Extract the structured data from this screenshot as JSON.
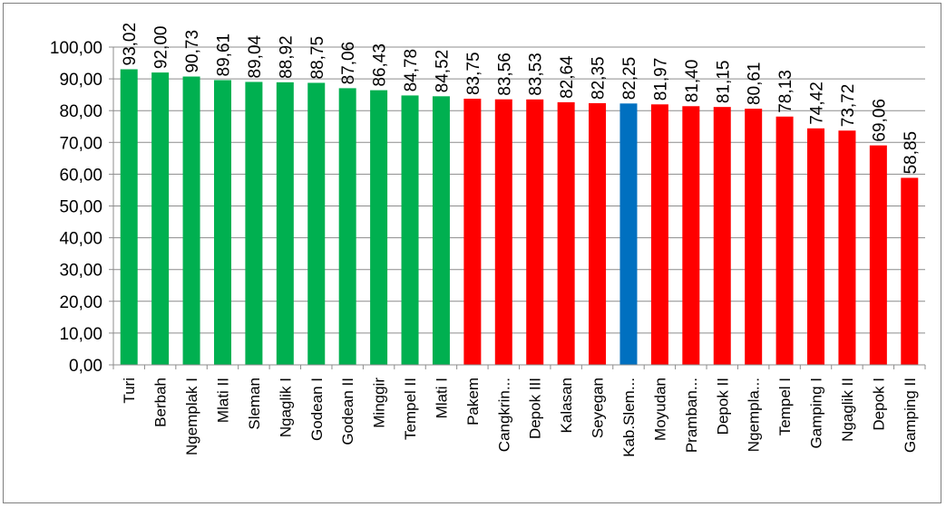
{
  "chart_data": {
    "type": "bar",
    "categories": [
      "Turi",
      "Berbah",
      "Ngemplak I",
      "Mlati II",
      "Sleman",
      "Ngaglik I",
      "Godean I",
      "Godean II",
      "Minggir",
      "Tempel II",
      "Mlati I",
      "Pakem",
      "Cangkrin...",
      "Depok III",
      "Kalasan",
      "Seyegan",
      "Kab.Slem...",
      "Moyudan",
      "Pramban...",
      "Depok II",
      "Ngempla...",
      "Tempel I",
      "Gamping I",
      "Ngaglik II",
      "Depok I",
      "Gamping II"
    ],
    "values": [
      93.02,
      92.0,
      90.73,
      89.61,
      89.04,
      88.92,
      88.75,
      87.06,
      86.43,
      84.78,
      84.52,
      83.75,
      83.56,
      83.53,
      82.64,
      82.35,
      82.25,
      81.97,
      81.4,
      81.15,
      80.61,
      78.13,
      74.42,
      73.72,
      69.06,
      58.85
    ],
    "data_labels": [
      "93,02",
      "92,00",
      "90,73",
      "89,61",
      "89,04",
      "88,92",
      "88,75",
      "87,06",
      "86,43",
      "84,78",
      "84,52",
      "83,75",
      "83,56",
      "83,53",
      "82,64",
      "82,35",
      "82,25",
      "81,97",
      "81,40",
      "81,15",
      "80,61",
      "78,13",
      "74,42",
      "73,72",
      "69,06",
      "58,85"
    ],
    "bar_colors": [
      "#00b050",
      "#00b050",
      "#00b050",
      "#00b050",
      "#00b050",
      "#00b050",
      "#00b050",
      "#00b050",
      "#00b050",
      "#00b050",
      "#00b050",
      "#ff0000",
      "#ff0000",
      "#ff0000",
      "#ff0000",
      "#ff0000",
      "#0070c0",
      "#ff0000",
      "#ff0000",
      "#ff0000",
      "#ff0000",
      "#ff0000",
      "#ff0000",
      "#ff0000",
      "#ff0000",
      "#ff0000"
    ],
    "ylim": [
      0,
      100
    ],
    "yticks": [
      0,
      10,
      20,
      30,
      40,
      50,
      60,
      70,
      80,
      90,
      100
    ],
    "ytick_labels": [
      "0,00",
      "10,00",
      "20,00",
      "30,00",
      "40,00",
      "50,00",
      "60,00",
      "70,00",
      "80,00",
      "90,00",
      "100,00"
    ],
    "grid": true,
    "legend": "none",
    "title": "",
    "xlabel": "",
    "ylabel": ""
  }
}
